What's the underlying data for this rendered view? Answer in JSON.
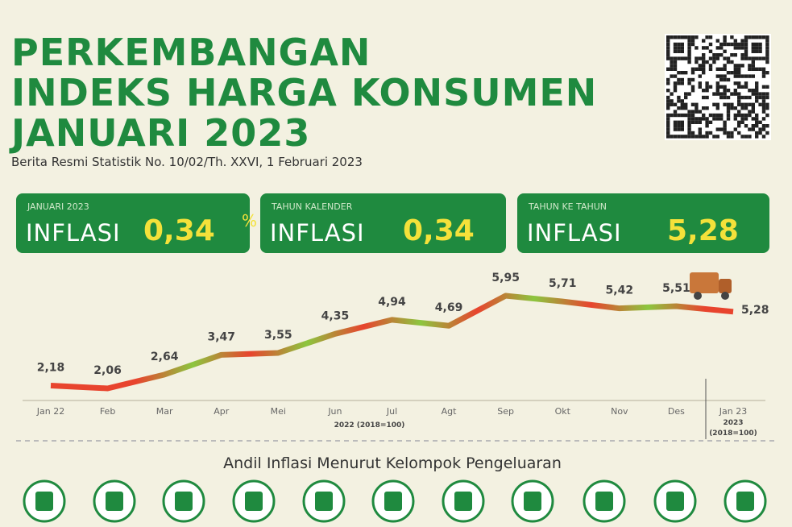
{
  "header": {
    "title_lines": [
      "PERKEMBANGAN",
      "INDEKS HARGA KONSUMEN",
      "JANUARI 2023"
    ],
    "subtitle": "Berita Resmi Statistik No. 10/02/Th. XXVI, 1 Februari 2023"
  },
  "cards": [
    {
      "period": "JANUARI 2023",
      "label": "INFLASI",
      "value": "0,34",
      "unit": "%"
    },
    {
      "period": "TAHUN KALENDER",
      "label": "INFLASI",
      "value": "0,34",
      "unit": "%"
    },
    {
      "period": "TAHUN KE TAHUN",
      "label": "INFLASI",
      "value": "5,28",
      "unit": "%"
    }
  ],
  "chart_data": {
    "type": "line",
    "categories": [
      "Jan 22",
      "Feb",
      "Mar",
      "Apr",
      "Mei",
      "Jun",
      "Jul",
      "Agt",
      "Sep",
      "Okt",
      "Nov",
      "Des",
      "Jan 23"
    ],
    "values": [
      2.18,
      2.06,
      2.64,
      3.47,
      3.55,
      4.35,
      4.94,
      4.69,
      5.95,
      5.71,
      5.42,
      5.51,
      5.28
    ],
    "value_labels": [
      "2,18",
      "2,06",
      "2,64",
      "3,47",
      "3,55",
      "4,35",
      "4,94",
      "4,69",
      "5,95",
      "5,71",
      "5,42",
      "5,51",
      "5,28"
    ],
    "segment_colors": [
      "#e8442e",
      "#e8442e",
      "#8cc63f",
      "#e8442e",
      "#8cc63f",
      "#e8442e",
      "#8cc63f",
      "#e8442e",
      "#8cc63f",
      "#e8442e",
      "#8cc63f",
      "#e8442e"
    ],
    "axis_note": "2022 (2018=100)",
    "axis_note_last": [
      "2023",
      "(2018=100)"
    ]
  },
  "section": {
    "heading": "Andil Inflasi Menurut Kelompok Pengeluaran"
  }
}
